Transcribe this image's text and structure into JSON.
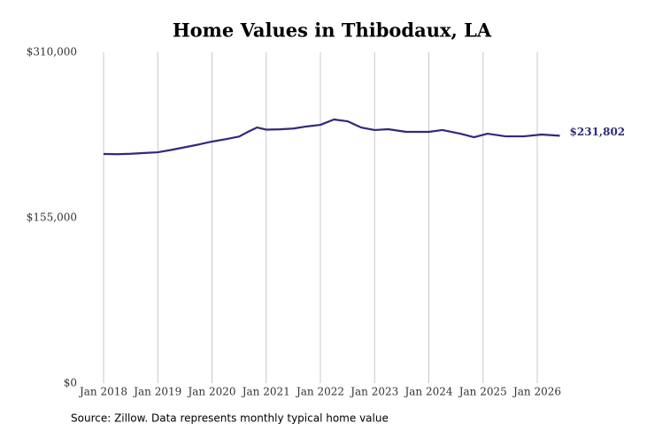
{
  "chart_data": {
    "type": "line",
    "title": "Home Values in Thibodaux, LA",
    "source": "Source: Zillow. Data represents monthly typical home value",
    "x": [
      "2018-01",
      "2018-04",
      "2018-07",
      "2018-10",
      "2019-01",
      "2019-04",
      "2019-07",
      "2019-10",
      "2020-01",
      "2020-04",
      "2020-07",
      "2020-09",
      "2020-11",
      "2021-01",
      "2021-04",
      "2021-07",
      "2021-10",
      "2022-01",
      "2022-04",
      "2022-07",
      "2022-10",
      "2023-01",
      "2023-04",
      "2023-08",
      "2024-01",
      "2024-04",
      "2024-08",
      "2024-11",
      "2025-02",
      "2025-06",
      "2025-10",
      "2026-02",
      "2026-06"
    ],
    "series": [
      {
        "name": "Typical home value",
        "color": "#2f2a7c",
        "values": [
          214700,
          214500,
          214900,
          215600,
          216300,
          218500,
          221000,
          223500,
          226300,
          228500,
          231000,
          235500,
          239500,
          237500,
          237800,
          238500,
          240500,
          242000,
          247000,
          245300,
          239500,
          237100,
          237900,
          235400,
          235400,
          237100,
          233700,
          230400,
          233700,
          231200,
          231200,
          232900,
          231802
        ],
        "value_labels": [
          null,
          null,
          null,
          null,
          null,
          null,
          null,
          null,
          null,
          null,
          null,
          null,
          null,
          null,
          null,
          null,
          null,
          null,
          null,
          null,
          null,
          null,
          null,
          null,
          null,
          null,
          null,
          null,
          null,
          null,
          null,
          null,
          "$231,802"
        ]
      }
    ],
    "xticks": [
      {
        "value": "2018-01",
        "label": "Jan 2018"
      },
      {
        "value": "2019-01",
        "label": "Jan 2019"
      },
      {
        "value": "2020-01",
        "label": "Jan 2020"
      },
      {
        "value": "2021-01",
        "label": "Jan 2021"
      },
      {
        "value": "2022-01",
        "label": "Jan 2022"
      },
      {
        "value": "2023-01",
        "label": "Jan 2023"
      },
      {
        "value": "2024-01",
        "label": "Jan 2024"
      },
      {
        "value": "2025-01",
        "label": "Jan 2025"
      },
      {
        "value": "2026-01",
        "label": "Jan 2026"
      }
    ],
    "ylim": [
      0,
      310000
    ],
    "yticks": [
      {
        "value": 0,
        "label": "$0"
      },
      {
        "value": 155000,
        "label": "$155,000"
      },
      {
        "value": 310000,
        "label": "$310,000"
      }
    ],
    "grid": "x"
  }
}
